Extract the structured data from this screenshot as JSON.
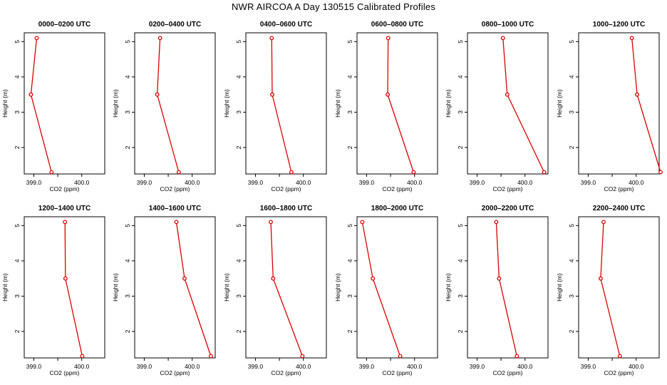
{
  "page": {
    "title": "NWR AIRCOA A  Day 130515  Calibrated Profiles",
    "line_color": "#dd0000",
    "xlabel": "CO2 (ppm)",
    "ylabel": "Height (m)",
    "x_tick_labels": [
      "399.0",
      "400.0"
    ],
    "y_tick_labels": [
      "2",
      "3",
      "4",
      "5"
    ]
  },
  "chart_data": [
    {
      "type": "line",
      "title": "0000–0200 UTC",
      "xlabel": "CO2 (ppm)",
      "ylabel": "Height (m)",
      "xlim": [
        398.8,
        400.48
      ],
      "ylim": [
        1.25,
        5.25
      ],
      "x": [
        399.06,
        398.94,
        399.37
      ],
      "y": [
        5.1,
        3.5,
        1.3
      ]
    },
    {
      "type": "line",
      "title": "0200–0400 UTC",
      "xlabel": "CO2 (ppm)",
      "ylabel": "Height (m)",
      "xlim": [
        398.8,
        400.48
      ],
      "ylim": [
        1.25,
        5.25
      ],
      "x": [
        399.33,
        399.27,
        399.72
      ],
      "y": [
        5.1,
        3.5,
        1.3
      ]
    },
    {
      "type": "line",
      "title": "0400–0600 UTC",
      "xlabel": "CO2 (ppm)",
      "ylabel": "Height (m)",
      "xlim": [
        398.8,
        400.48
      ],
      "ylim": [
        1.25,
        5.25
      ],
      "x": [
        399.34,
        399.35,
        399.75
      ],
      "y": [
        5.1,
        3.5,
        1.3
      ]
    },
    {
      "type": "line",
      "title": "0600–0800 UTC",
      "xlabel": "CO2 (ppm)",
      "ylabel": "Height (m)",
      "xlim": [
        398.8,
        400.48
      ],
      "ylim": [
        1.25,
        5.25
      ],
      "x": [
        399.45,
        399.44,
        399.98
      ],
      "y": [
        5.1,
        3.5,
        1.3
      ]
    },
    {
      "type": "line",
      "title": "0800–1000 UTC",
      "xlabel": "CO2 (ppm)",
      "ylabel": "Height (m)",
      "xlim": [
        398.8,
        400.48
      ],
      "ylim": [
        1.25,
        5.25
      ],
      "x": [
        399.54,
        399.63,
        400.4
      ],
      "y": [
        5.1,
        3.5,
        1.3
      ]
    },
    {
      "type": "line",
      "title": "1000–1200 UTC",
      "xlabel": "CO2 (ppm)",
      "ylabel": "Height (m)",
      "xlim": [
        398.8,
        400.48
      ],
      "ylim": [
        1.25,
        5.25
      ],
      "x": [
        399.91,
        400.02,
        400.51
      ],
      "y": [
        5.1,
        3.5,
        1.3
      ]
    },
    {
      "type": "line",
      "title": "1200–1400 UTC",
      "xlabel": "CO2 (ppm)",
      "ylabel": "Height (m)",
      "xlim": [
        398.8,
        400.48
      ],
      "ylim": [
        1.25,
        5.25
      ],
      "x": [
        399.65,
        399.66,
        400.01
      ],
      "y": [
        5.1,
        3.5,
        1.3
      ]
    },
    {
      "type": "line",
      "title": "1400–1600 UTC",
      "xlabel": "CO2 (ppm)",
      "ylabel": "Height (m)",
      "xlim": [
        398.8,
        400.48
      ],
      "ylim": [
        1.25,
        5.25
      ],
      "x": [
        399.67,
        399.84,
        400.39
      ],
      "y": [
        5.1,
        3.5,
        1.3
      ]
    },
    {
      "type": "line",
      "title": "1600–1800 UTC",
      "xlabel": "CO2 (ppm)",
      "ylabel": "Height (m)",
      "xlim": [
        398.8,
        400.48
      ],
      "ylim": [
        1.25,
        5.25
      ],
      "x": [
        399.32,
        399.37,
        399.98
      ],
      "y": [
        5.1,
        3.5,
        1.3
      ]
    },
    {
      "type": "line",
      "title": "1800–2000 UTC",
      "xlabel": "CO2 (ppm)",
      "ylabel": "Height (m)",
      "xlim": [
        398.8,
        400.48
      ],
      "ylim": [
        1.25,
        5.25
      ],
      "x": [
        398.91,
        399.13,
        399.7
      ],
      "y": [
        5.1,
        3.5,
        1.3
      ]
    },
    {
      "type": "line",
      "title": "2000–2200 UTC",
      "xlabel": "CO2 (ppm)",
      "ylabel": "Height (m)",
      "xlim": [
        398.8,
        400.48
      ],
      "ylim": [
        1.25,
        5.25
      ],
      "x": [
        399.4,
        399.46,
        399.83
      ],
      "y": [
        5.1,
        3.5,
        1.3
      ]
    },
    {
      "type": "line",
      "title": "2200–2400 UTC",
      "xlabel": "CO2 (ppm)",
      "ylabel": "Height (m)",
      "xlim": [
        398.8,
        400.48
      ],
      "ylim": [
        1.25,
        5.25
      ],
      "x": [
        399.32,
        399.26,
        399.66
      ],
      "y": [
        5.1,
        3.5,
        1.3
      ]
    }
  ]
}
